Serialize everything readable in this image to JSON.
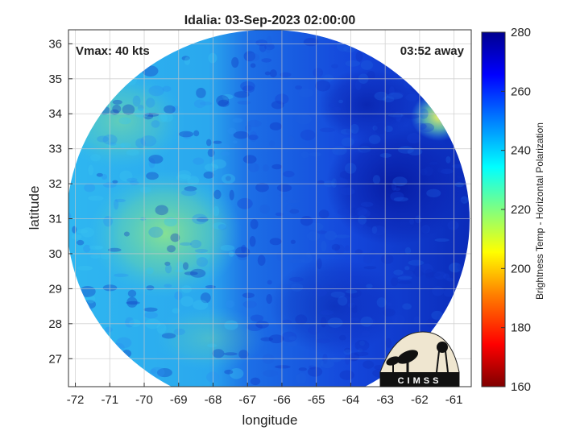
{
  "chart_data": {
    "type": "heatmap",
    "title": "Idalia: 03-Sep-2023 02:00:00",
    "xlabel": "longitude",
    "ylabel": "latitude",
    "xlim": [
      -72.2,
      -60.5
    ],
    "ylim": [
      26.2,
      36.4
    ],
    "x_ticks": [
      -72,
      -71,
      -70,
      -69,
      -68,
      -67,
      -66,
      -65,
      -64,
      -63,
      -62,
      -61
    ],
    "y_ticks": [
      27,
      28,
      29,
      30,
      31,
      32,
      33,
      34,
      35,
      36
    ],
    "grid": true,
    "annotations": {
      "vmax": "Vmax: 40 kts",
      "time_away": "03:52 away"
    },
    "colorbar": {
      "label": "Brightness Temp - Horizontal Polarization",
      "range": [
        160,
        280
      ],
      "ticks": [
        160,
        180,
        200,
        220,
        240,
        260,
        280
      ],
      "colormap": [
        "#7f0000",
        "#ff0000",
        "#ff7f00",
        "#ffff00",
        "#7fff7f",
        "#00ffff",
        "#007fff",
        "#0000ff",
        "#00008f"
      ]
    },
    "swath": {
      "center_lon": -66.4,
      "center_lat": 30.9,
      "radius_deg_lon": 5.7,
      "radius_deg_lat": 5.3,
      "regions": [
        {
          "name": "west",
          "approx_value": 238
        },
        {
          "name": "center",
          "approx_value": 258
        },
        {
          "name": "east",
          "approx_value": 268
        },
        {
          "name": "northeast-edge",
          "approx_value": 225
        }
      ]
    },
    "logo_text": "CIMSS"
  }
}
